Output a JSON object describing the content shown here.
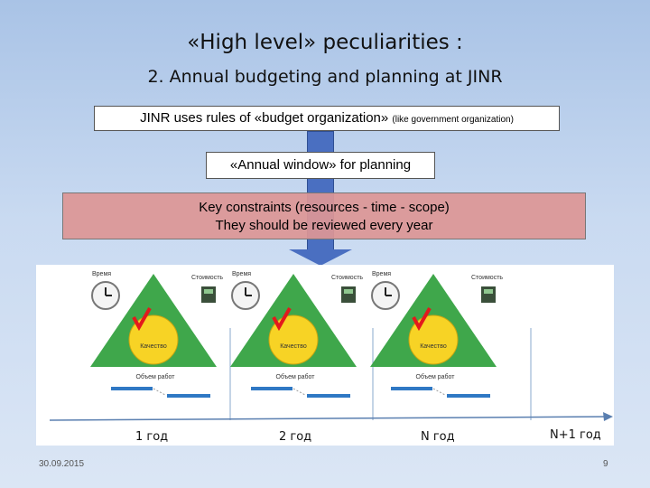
{
  "slide": {
    "title": "«High level» peculiarities :",
    "subtitle": "2. Annual budgeting and planning at JINR",
    "rules_box": {
      "main": "JINR uses rules of «budget organization» ",
      "small": "(like government organization)"
    },
    "window_box": "«Annual window» for planning",
    "constraints_box": {
      "line1": "Key constraints (resources - time - scope)",
      "line2": "They should be reviewed every year"
    },
    "footer": {
      "date": "30.09.2015",
      "page": "9"
    }
  },
  "diagram": {
    "triangle_labels": {
      "time": "Время",
      "cost": "Стоимость",
      "quality": "Качество",
      "scope": "Объем работ"
    },
    "timeline_labels": [
      "1 год",
      "2 год",
      "N год",
      "N+1 год"
    ],
    "colors": {
      "triangle": "#3fa74b",
      "quality_circle": "#f7d325",
      "check": "#e3191c",
      "bar": "#2f78c4",
      "axis": "#5a7fb0"
    }
  }
}
